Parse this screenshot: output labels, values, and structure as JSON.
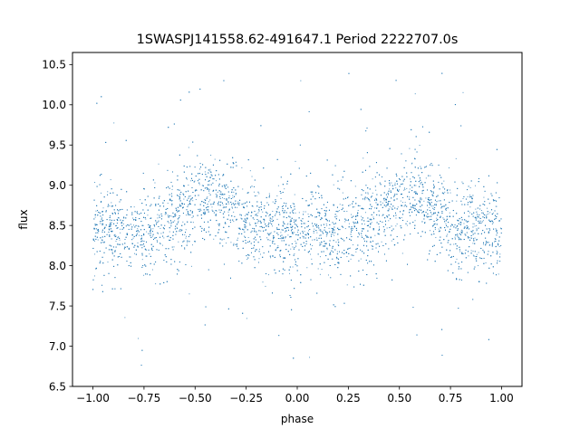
{
  "chart_data": {
    "type": "scatter",
    "title": "1SWASPJ141558.62-491647.1 Period 2222707.0s",
    "xlabel": "phase",
    "ylabel": "flux",
    "xlim": [
      -1.1,
      1.1
    ],
    "ylim": [
      6.5,
      10.65
    ],
    "xticks": [
      -1.0,
      -0.75,
      -0.5,
      -0.25,
      0.0,
      0.25,
      0.5,
      0.75,
      1.0
    ],
    "xtick_labels": [
      "−1.00",
      "−0.75",
      "−0.50",
      "−0.25",
      "0.00",
      "0.25",
      "0.50",
      "0.75",
      "1.00"
    ],
    "yticks": [
      6.5,
      7.0,
      7.5,
      8.0,
      8.5,
      9.0,
      9.5,
      10.0,
      10.5
    ],
    "ytick_labels": [
      "6.5",
      "7.0",
      "7.5",
      "8.0",
      "8.5",
      "9.0",
      "9.5",
      "10.0",
      "10.5"
    ],
    "grid": false,
    "point_color": "#1f77b4",
    "series_shape": {
      "phase_range": [
        -1.0,
        1.0
      ],
      "baseline_flux": 8.42,
      "hump_peak_flux": 8.85,
      "hump_centers_phase": [
        -0.45,
        0.55
      ],
      "scatter_std": 0.3,
      "outlier_min": 6.7,
      "outlier_max": 10.4
    }
  }
}
